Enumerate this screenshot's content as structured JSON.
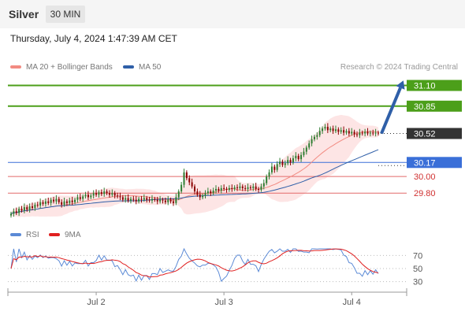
{
  "header": {
    "instrument": "Silver",
    "timeframe": "30 MIN"
  },
  "timestamp": "Thursday, July 4, 2024 1:47:39 AM CET",
  "legend": {
    "ma20": {
      "label": "MA 20 + Bollinger Bands",
      "color": "#f28b82"
    },
    "ma50": {
      "label": "MA 50",
      "color": "#2f5fa8"
    }
  },
  "source": "Research © 2024 Trading Central",
  "rsi_legend": {
    "rsi": {
      "label": "RSI",
      "color": "#5b8ad6"
    },
    "ma9": {
      "label": "9MA",
      "color": "#e02020"
    }
  },
  "chart_data": {
    "type": "candlestick",
    "ylim": [
      29.45,
      31.2
    ],
    "x_ticks": [
      "Jul 2",
      "Jul 3",
      "Jul 4"
    ],
    "x_tick_index": [
      32,
      80,
      128
    ],
    "last_price": {
      "label": "30.52",
      "value": 30.52
    },
    "levels": [
      {
        "label": "31.10",
        "value": 31.1,
        "kind": "resistance"
      },
      {
        "label": "30.85",
        "value": 30.85,
        "kind": "resistance"
      },
      {
        "label": "30.17",
        "value": 30.17,
        "kind": "pivot"
      },
      {
        "label": "30.00",
        "value": 30.0,
        "kind": "support"
      },
      {
        "label": "29.80",
        "value": 29.8,
        "kind": "support"
      }
    ],
    "target_arrow": {
      "from": 30.52,
      "to": 31.1
    },
    "colors": {
      "up": "#2e7d32",
      "down": "#8b0000",
      "resistance": "#4c9f1a",
      "pivot": "#3a6fd8",
      "support": "#e36a6a",
      "price": "#333333"
    },
    "closes": [
      29.55,
      29.58,
      29.56,
      29.61,
      29.59,
      29.63,
      29.6,
      29.64,
      29.62,
      29.66,
      29.65,
      29.69,
      29.67,
      29.7,
      29.68,
      29.72,
      29.7,
      29.73,
      29.69,
      29.66,
      29.7,
      29.68,
      29.71,
      29.69,
      29.72,
      29.75,
      29.73,
      29.76,
      29.78,
      29.75,
      29.77,
      29.8,
      29.78,
      29.81,
      29.79,
      29.82,
      29.8,
      29.78,
      29.8,
      29.77,
      29.76,
      29.75,
      29.72,
      29.74,
      29.71,
      29.73,
      29.72,
      29.7,
      29.73,
      29.72,
      29.74,
      29.72,
      29.71,
      29.73,
      29.72,
      29.7,
      29.72,
      29.71,
      29.69,
      29.72,
      29.7,
      29.68,
      29.75,
      29.82,
      29.9,
      30.05,
      29.98,
      29.93,
      29.88,
      29.82,
      29.78,
      29.75,
      29.77,
      29.8,
      29.82,
      29.8,
      29.83,
      29.85,
      29.83,
      29.86,
      29.85,
      29.84,
      29.86,
      29.85,
      29.87,
      29.86,
      29.88,
      29.86,
      29.85,
      29.87,
      29.86,
      29.88,
      29.85,
      29.84,
      29.88,
      29.92,
      30.0,
      30.05,
      30.12,
      30.08,
      30.15,
      30.18,
      30.14,
      30.16,
      30.2,
      30.17,
      30.22,
      30.25,
      30.21,
      30.26,
      30.3,
      30.35,
      30.4,
      30.45,
      30.48,
      30.5,
      30.55,
      30.58,
      30.6,
      30.56,
      30.58,
      30.55,
      30.57,
      30.54,
      30.56,
      30.53,
      30.55,
      30.52,
      30.54,
      30.51,
      30.5,
      30.53,
      30.52,
      30.54,
      30.52,
      30.53,
      30.52,
      30.53,
      30.52
    ]
  },
  "rsi_data": {
    "ylim": [
      20,
      80
    ],
    "levels": [
      70,
      50,
      30
    ],
    "level_labels": [
      "70",
      "50",
      "30"
    ]
  }
}
